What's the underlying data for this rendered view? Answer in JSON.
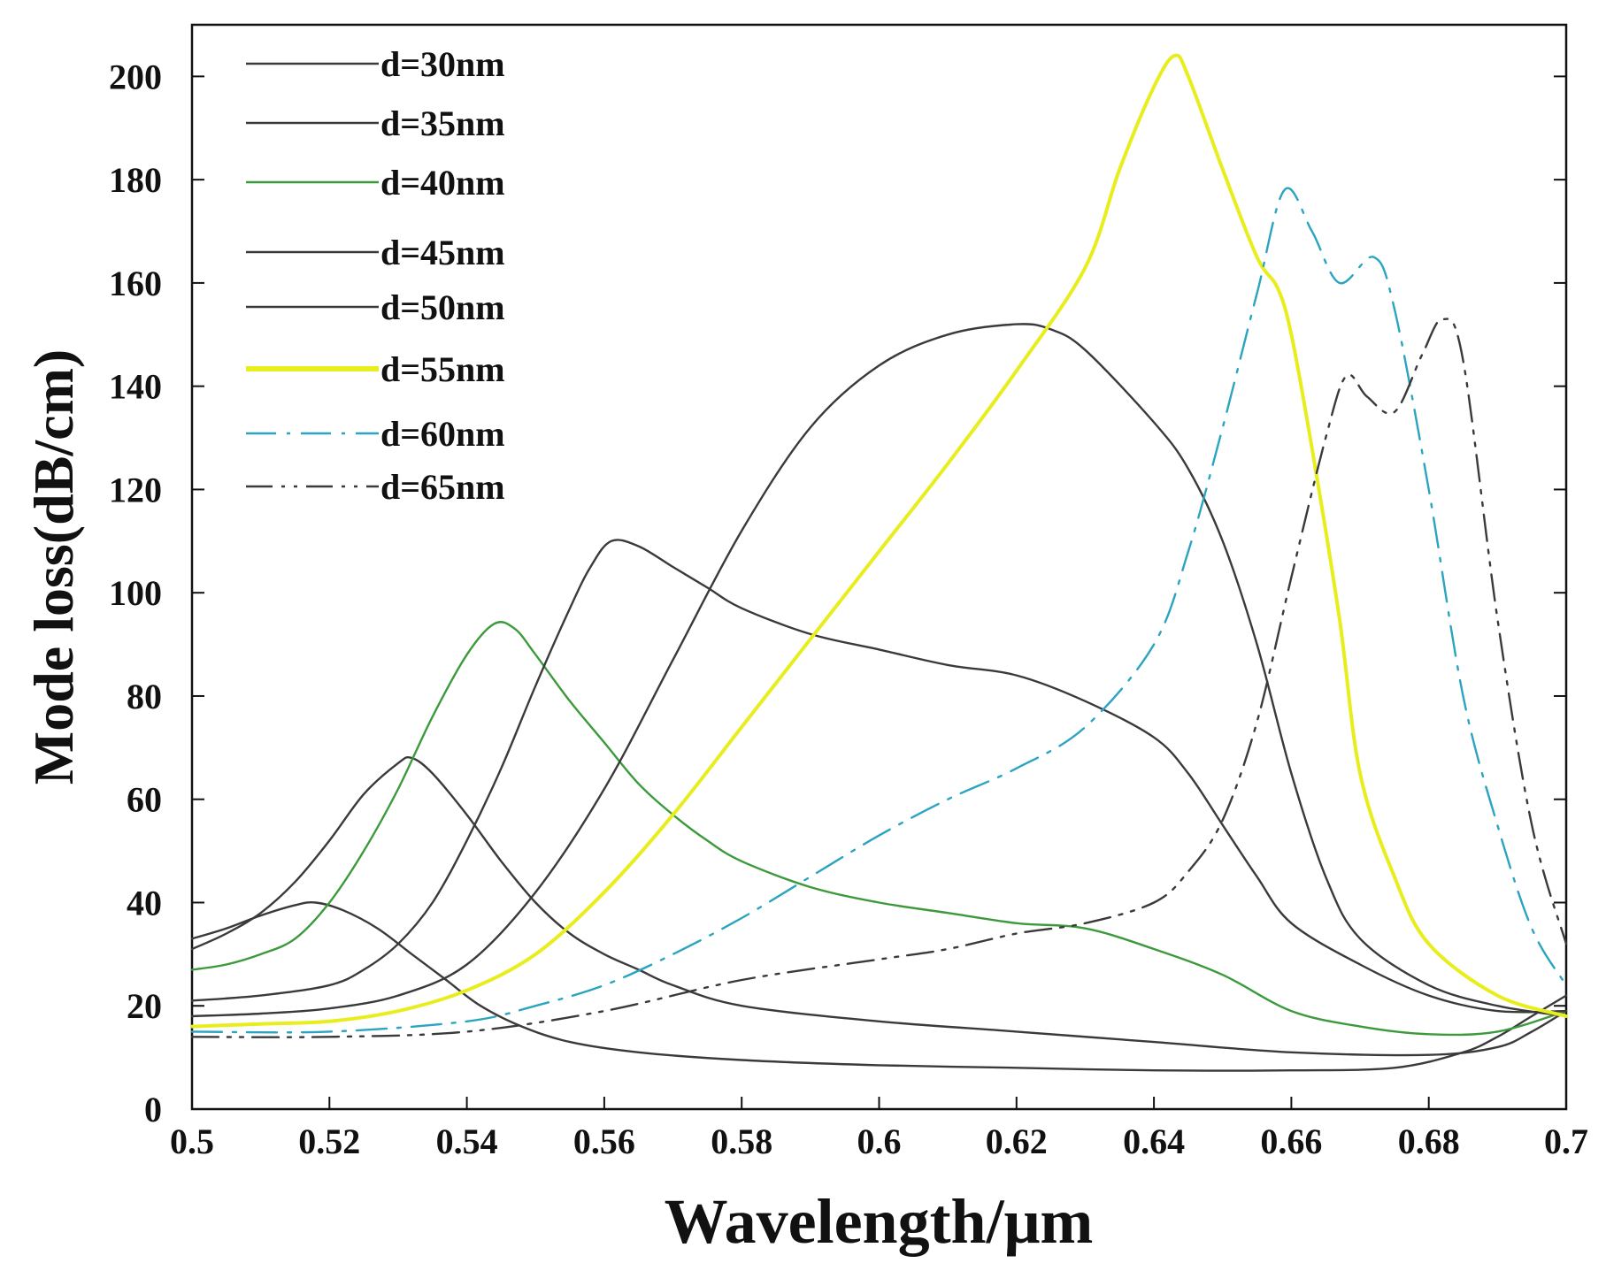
{
  "chart_data": {
    "type": "line",
    "title": "",
    "xlabel": "Wavelength/μm",
    "ylabel": "Mode loss(dB/cm)",
    "xlim": [
      0.5,
      0.7
    ],
    "ylim": [
      0,
      210
    ],
    "grid": false,
    "legend_position": "top-left",
    "x_ticks": [
      0.5,
      0.52,
      0.54,
      0.56,
      0.58,
      0.6,
      0.62,
      0.64,
      0.66,
      0.68,
      0.7
    ],
    "x_tick_labels": [
      "0.5",
      "0.52",
      "0.54",
      "0.56",
      "0.58",
      "0.6",
      "0.62",
      "0.64",
      "0.66",
      "0.68",
      "0.7"
    ],
    "y_ticks": [
      0,
      20,
      40,
      60,
      80,
      100,
      120,
      140,
      160,
      180,
      200
    ],
    "y_tick_labels": [
      "0",
      "20",
      "40",
      "60",
      "80",
      "100",
      "120",
      "140",
      "160",
      "180",
      "200"
    ],
    "series": [
      {
        "name": "d=30nm",
        "color": "#3a3a3a",
        "style": "solid",
        "points": [
          [
            0.5,
            33
          ],
          [
            0.505,
            35
          ],
          [
            0.51,
            37.5
          ],
          [
            0.515,
            39.5
          ],
          [
            0.518,
            40
          ],
          [
            0.522,
            38.5
          ],
          [
            0.527,
            35
          ],
          [
            0.532,
            30
          ],
          [
            0.537,
            25
          ],
          [
            0.542,
            20
          ],
          [
            0.548,
            16
          ],
          [
            0.555,
            13
          ],
          [
            0.565,
            11
          ],
          [
            0.58,
            9.5
          ],
          [
            0.6,
            8.5
          ],
          [
            0.62,
            8
          ],
          [
            0.64,
            7.5
          ],
          [
            0.66,
            7.5
          ],
          [
            0.675,
            8
          ],
          [
            0.685,
            11
          ],
          [
            0.69,
            14
          ],
          [
            0.695,
            18
          ],
          [
            0.7,
            22
          ]
        ]
      },
      {
        "name": "d=35nm",
        "color": "#3a3a3a",
        "style": "solid",
        "points": [
          [
            0.5,
            31
          ],
          [
            0.505,
            34
          ],
          [
            0.51,
            38
          ],
          [
            0.515,
            44
          ],
          [
            0.52,
            52
          ],
          [
            0.525,
            61
          ],
          [
            0.53,
            67
          ],
          [
            0.532,
            68
          ],
          [
            0.535,
            65
          ],
          [
            0.54,
            57
          ],
          [
            0.545,
            48
          ],
          [
            0.55,
            40
          ],
          [
            0.555,
            34
          ],
          [
            0.56,
            30
          ],
          [
            0.565,
            27
          ],
          [
            0.57,
            24
          ],
          [
            0.58,
            20
          ],
          [
            0.6,
            17
          ],
          [
            0.62,
            15
          ],
          [
            0.64,
            13
          ],
          [
            0.66,
            11
          ],
          [
            0.68,
            10.5
          ],
          [
            0.69,
            12
          ],
          [
            0.695,
            15
          ],
          [
            0.7,
            19
          ]
        ]
      },
      {
        "name": "d=40nm",
        "color": "#3c9a3c",
        "style": "solid",
        "points": [
          [
            0.5,
            27
          ],
          [
            0.505,
            28
          ],
          [
            0.51,
            30
          ],
          [
            0.515,
            33
          ],
          [
            0.52,
            40
          ],
          [
            0.525,
            50
          ],
          [
            0.53,
            62
          ],
          [
            0.535,
            76
          ],
          [
            0.54,
            88
          ],
          [
            0.544,
            94
          ],
          [
            0.547,
            93
          ],
          [
            0.55,
            88
          ],
          [
            0.555,
            79
          ],
          [
            0.56,
            71
          ],
          [
            0.565,
            63
          ],
          [
            0.57,
            57
          ],
          [
            0.575,
            52
          ],
          [
            0.58,
            48
          ],
          [
            0.59,
            43
          ],
          [
            0.6,
            40
          ],
          [
            0.61,
            38
          ],
          [
            0.62,
            36
          ],
          [
            0.63,
            35
          ],
          [
            0.64,
            31
          ],
          [
            0.65,
            26
          ],
          [
            0.66,
            19
          ],
          [
            0.67,
            16
          ],
          [
            0.68,
            14.5
          ],
          [
            0.69,
            15
          ],
          [
            0.7,
            19
          ]
        ]
      },
      {
        "name": "d=45nm",
        "color": "#3a3a3a",
        "style": "solid",
        "points": [
          [
            0.5,
            21
          ],
          [
            0.51,
            22
          ],
          [
            0.52,
            24
          ],
          [
            0.525,
            27
          ],
          [
            0.53,
            32
          ],
          [
            0.535,
            40
          ],
          [
            0.54,
            52
          ],
          [
            0.545,
            66
          ],
          [
            0.55,
            82
          ],
          [
            0.555,
            97
          ],
          [
            0.558,
            105
          ],
          [
            0.561,
            110
          ],
          [
            0.565,
            109
          ],
          [
            0.57,
            105
          ],
          [
            0.575,
            101
          ],
          [
            0.58,
            97
          ],
          [
            0.59,
            92
          ],
          [
            0.6,
            89
          ],
          [
            0.61,
            86
          ],
          [
            0.62,
            84
          ],
          [
            0.63,
            79
          ],
          [
            0.64,
            72
          ],
          [
            0.645,
            65
          ],
          [
            0.65,
            55
          ],
          [
            0.655,
            45
          ],
          [
            0.66,
            36
          ],
          [
            0.67,
            28
          ],
          [
            0.68,
            22
          ],
          [
            0.69,
            19
          ],
          [
            0.7,
            19
          ]
        ]
      },
      {
        "name": "d=50nm",
        "color": "#3a3a3a",
        "style": "solid",
        "points": [
          [
            0.5,
            18
          ],
          [
            0.51,
            18.5
          ],
          [
            0.52,
            19.5
          ],
          [
            0.53,
            22
          ],
          [
            0.54,
            28
          ],
          [
            0.55,
            42
          ],
          [
            0.56,
            62
          ],
          [
            0.57,
            87
          ],
          [
            0.58,
            112
          ],
          [
            0.59,
            132
          ],
          [
            0.6,
            144
          ],
          [
            0.61,
            150
          ],
          [
            0.62,
            152
          ],
          [
            0.625,
            151
          ],
          [
            0.63,
            147
          ],
          [
            0.64,
            133
          ],
          [
            0.645,
            124
          ],
          [
            0.65,
            110
          ],
          [
            0.655,
            90
          ],
          [
            0.66,
            65
          ],
          [
            0.665,
            45
          ],
          [
            0.67,
            33
          ],
          [
            0.68,
            24
          ],
          [
            0.69,
            20
          ],
          [
            0.7,
            18
          ]
        ]
      },
      {
        "name": "d=55nm",
        "color": "#e8ee1e",
        "style": "solid",
        "width": 4,
        "points": [
          [
            0.5,
            16
          ],
          [
            0.51,
            16.5
          ],
          [
            0.52,
            17
          ],
          [
            0.53,
            19
          ],
          [
            0.54,
            23
          ],
          [
            0.55,
            30
          ],
          [
            0.56,
            42
          ],
          [
            0.57,
            57
          ],
          [
            0.58,
            74
          ],
          [
            0.59,
            91
          ],
          [
            0.6,
            108
          ],
          [
            0.61,
            125
          ],
          [
            0.62,
            143
          ],
          [
            0.63,
            163
          ],
          [
            0.635,
            182
          ],
          [
            0.64,
            198
          ],
          [
            0.643,
            204
          ],
          [
            0.645,
            200
          ],
          [
            0.65,
            182
          ],
          [
            0.655,
            165
          ],
          [
            0.658,
            159
          ],
          [
            0.66,
            150
          ],
          [
            0.663,
            128
          ],
          [
            0.667,
            95
          ],
          [
            0.67,
            65
          ],
          [
            0.675,
            45
          ],
          [
            0.68,
            32
          ],
          [
            0.69,
            22
          ],
          [
            0.7,
            18
          ]
        ]
      },
      {
        "name": "d=60nm",
        "color": "#2aa4c0",
        "style": "dashdot",
        "points": [
          [
            0.5,
            15
          ],
          [
            0.52,
            15
          ],
          [
            0.54,
            17
          ],
          [
            0.55,
            20
          ],
          [
            0.56,
            24
          ],
          [
            0.57,
            30
          ],
          [
            0.58,
            37
          ],
          [
            0.59,
            45
          ],
          [
            0.6,
            53
          ],
          [
            0.61,
            60
          ],
          [
            0.62,
            66
          ],
          [
            0.63,
            74
          ],
          [
            0.64,
            90
          ],
          [
            0.645,
            108
          ],
          [
            0.65,
            132
          ],
          [
            0.655,
            158
          ],
          [
            0.659,
            178
          ],
          [
            0.663,
            170
          ],
          [
            0.667,
            160
          ],
          [
            0.672,
            165
          ],
          [
            0.675,
            155
          ],
          [
            0.68,
            120
          ],
          [
            0.685,
            80
          ],
          [
            0.69,
            55
          ],
          [
            0.695,
            35
          ],
          [
            0.7,
            24
          ]
        ]
      },
      {
        "name": "d=65nm",
        "color": "#3a3a3a",
        "style": "dashdotdot",
        "points": [
          [
            0.5,
            14
          ],
          [
            0.52,
            14
          ],
          [
            0.54,
            15
          ],
          [
            0.56,
            19
          ],
          [
            0.58,
            25
          ],
          [
            0.6,
            29
          ],
          [
            0.61,
            31
          ],
          [
            0.62,
            34
          ],
          [
            0.63,
            36
          ],
          [
            0.64,
            40
          ],
          [
            0.645,
            46
          ],
          [
            0.65,
            56
          ],
          [
            0.655,
            75
          ],
          [
            0.66,
            103
          ],
          [
            0.665,
            130
          ],
          [
            0.668,
            142
          ],
          [
            0.671,
            138
          ],
          [
            0.675,
            135
          ],
          [
            0.679,
            146
          ],
          [
            0.682,
            153
          ],
          [
            0.685,
            145
          ],
          [
            0.69,
            95
          ],
          [
            0.695,
            55
          ],
          [
            0.7,
            32
          ]
        ]
      }
    ]
  }
}
